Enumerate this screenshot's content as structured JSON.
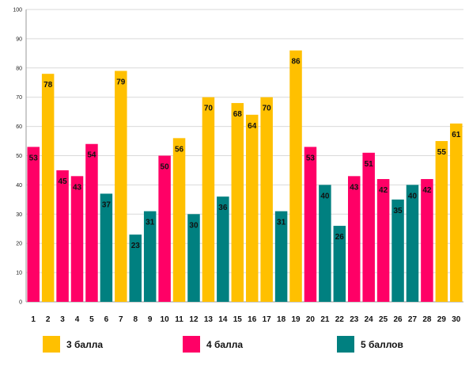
{
  "chart_data": {
    "type": "bar",
    "categories": [
      "1",
      "2",
      "3",
      "4",
      "5",
      "6",
      "7",
      "8",
      "9",
      "10",
      "11",
      "12",
      "13",
      "14",
      "15",
      "16",
      "17",
      "18",
      "19",
      "20",
      "21",
      "22",
      "23",
      "24",
      "25",
      "26",
      "27",
      "28",
      "29",
      "30"
    ],
    "values": [
      53,
      78,
      45,
      43,
      54,
      37,
      79,
      23,
      31,
      50,
      56,
      30,
      70,
      36,
      68,
      64,
      70,
      31,
      86,
      53,
      40,
      26,
      43,
      51,
      42,
      35,
      40,
      42,
      55,
      61
    ],
    "groups": [
      "4",
      "3",
      "4",
      "4",
      "4",
      "5",
      "3",
      "5",
      "5",
      "4",
      "3",
      "5",
      "3",
      "5",
      "3",
      "3",
      "3",
      "5",
      "3",
      "4",
      "5",
      "5",
      "4",
      "4",
      "4",
      "5",
      "5",
      "4",
      "3",
      "3"
    ],
    "series": [
      {
        "key": "3",
        "name": "3 балла",
        "color": "#FFC000"
      },
      {
        "key": "4",
        "name": "4 балла",
        "color": "#FF0066"
      },
      {
        "key": "5",
        "name": "5 баллов",
        "color": "#008080"
      }
    ],
    "yticks": [
      "0",
      "10",
      "20",
      "30",
      "40",
      "50",
      "60",
      "70",
      "80",
      "90",
      "100"
    ],
    "ylim": [
      0,
      100
    ],
    "grid": true,
    "legend_position": "bottom",
    "title": "",
    "xlabel": "",
    "ylabel": ""
  }
}
